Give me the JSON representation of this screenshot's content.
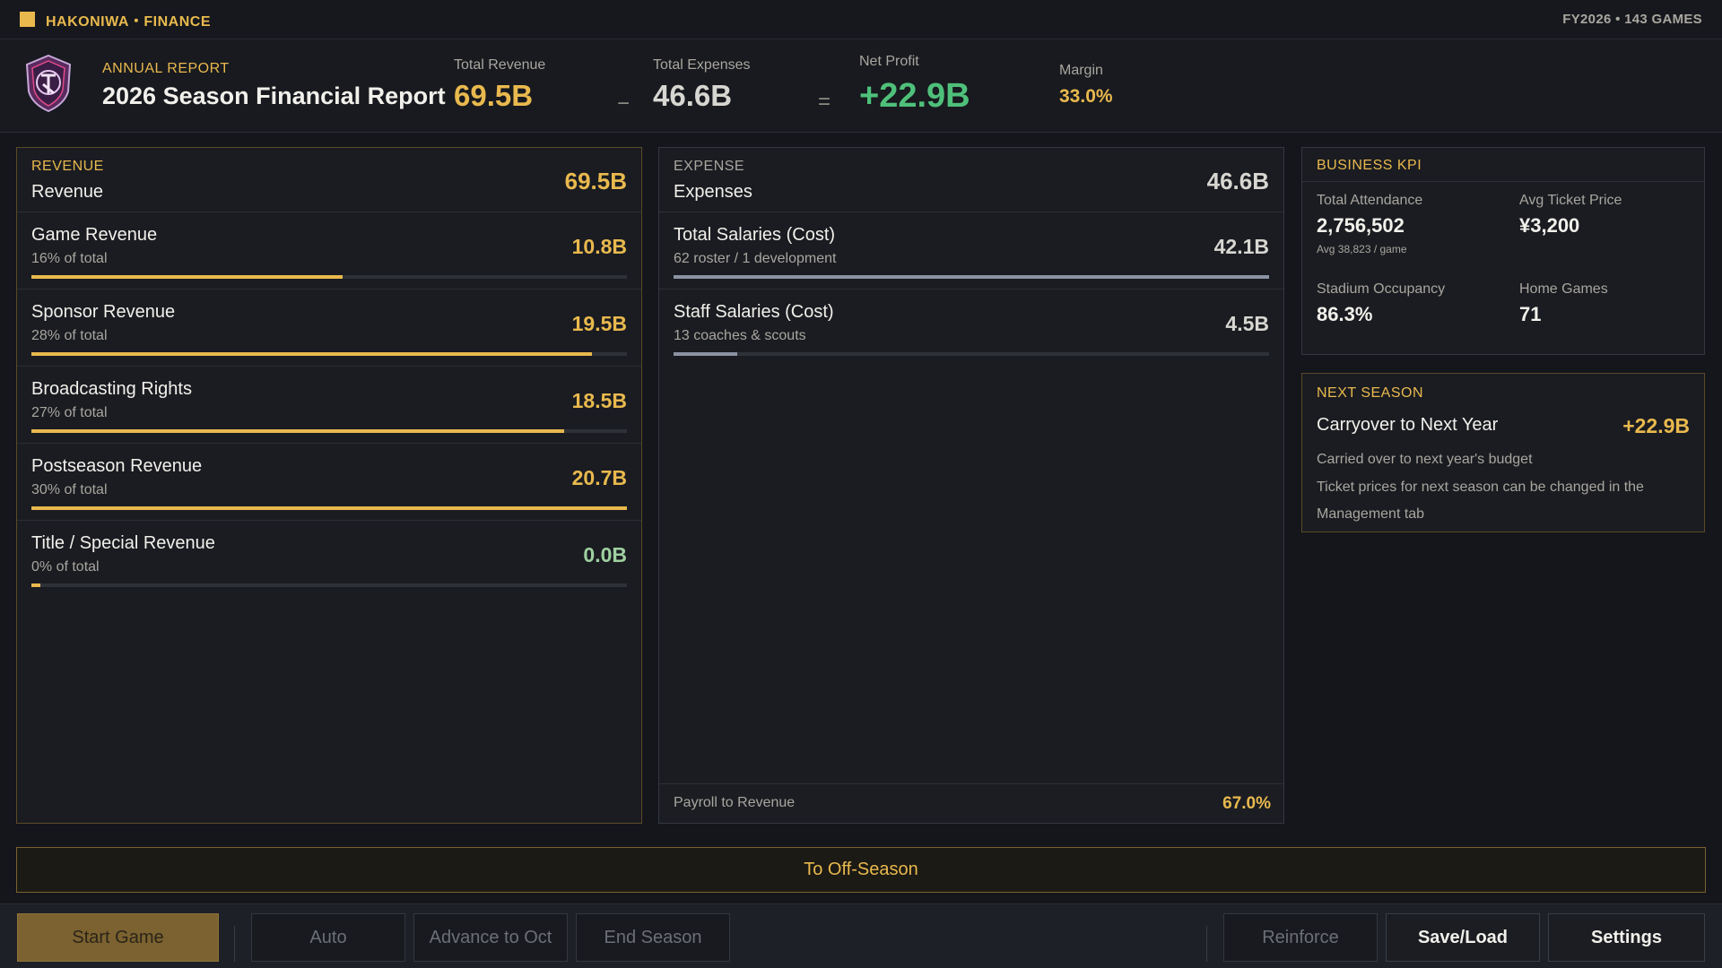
{
  "topbar": {
    "brand": "HAKONIWA・FINANCE",
    "meta": "FY2026 • 143 GAMES"
  },
  "header": {
    "kicker": "ANNUAL REPORT",
    "title": "2026 Season Financial Report",
    "total_revenue_label": "Total Revenue",
    "total_revenue": "69.5B",
    "minus_op": "−",
    "total_expenses_label": "Total Expenses",
    "total_expenses": "46.6B",
    "equals_op": "=",
    "net_profit_label": "Net Profit",
    "net_profit": "+22.9B",
    "margin_label": "Margin",
    "margin": "33.0%"
  },
  "revenue": {
    "kicker": "REVENUE",
    "title": "Revenue",
    "total": "69.5B",
    "rows": [
      {
        "name": "Game Revenue",
        "sub": "16% of total",
        "value": "10.8B",
        "fraction": 0.523
      },
      {
        "name": "Sponsor Revenue",
        "sub": "28% of total",
        "value": "19.5B",
        "fraction": 0.942
      },
      {
        "name": "Broadcasting Rights",
        "sub": "27% of total",
        "value": "18.5B",
        "fraction": 0.894
      },
      {
        "name": "Postseason Revenue",
        "sub": "30% of total",
        "value": "20.7B",
        "fraction": 1.0
      },
      {
        "name": "Title / Special Revenue",
        "sub": "0% of total",
        "value": "0.0B",
        "fraction": 0.015
      }
    ]
  },
  "expenses": {
    "kicker": "EXPENSE",
    "title": "Expenses",
    "total": "46.6B",
    "rows": [
      {
        "name": "Total Salaries (Cost)",
        "sub": "62 roster / 1 development",
        "value": "42.1B",
        "fraction": 1.0
      },
      {
        "name": "Staff Salaries (Cost)",
        "sub": "13 coaches & scouts",
        "value": "4.5B",
        "fraction": 0.107
      }
    ],
    "footer_label": "Payroll to Revenue",
    "footer_value": "67.0%"
  },
  "kpi": {
    "kicker": "BUSINESS KPI",
    "attendance_label": "Total Attendance",
    "attendance": "2,756,502",
    "attendance_sub": "Avg 38,823 / game",
    "ticket_label": "Avg Ticket Price",
    "ticket": "¥3,200",
    "occupancy_label": "Stadium Occupancy",
    "occupancy": "86.3%",
    "home_games_label": "Home Games",
    "home_games": "71"
  },
  "next_season": {
    "kicker": "NEXT SEASON",
    "title": "Carryover to Next Year",
    "value": "+22.9B",
    "note1": "Carried over to next year's budget",
    "note2": "Ticket prices for next season can be changed in the Management tab"
  },
  "actions": {
    "offseason": "To Off-Season"
  },
  "toolbar": {
    "start_game": "Start Game",
    "auto": "Auto",
    "advance": "Advance to Oct",
    "end_season": "End Season",
    "reinforce": "Reinforce",
    "save_load": "Save/Load",
    "settings": "Settings"
  },
  "colors": {
    "accent": "#e9b94e",
    "positive": "#4fc07a",
    "bar_expense": "#8b93a3",
    "zero_value": "#9fd0a0"
  },
  "icons": {
    "emblem": "team-crest-icon"
  }
}
